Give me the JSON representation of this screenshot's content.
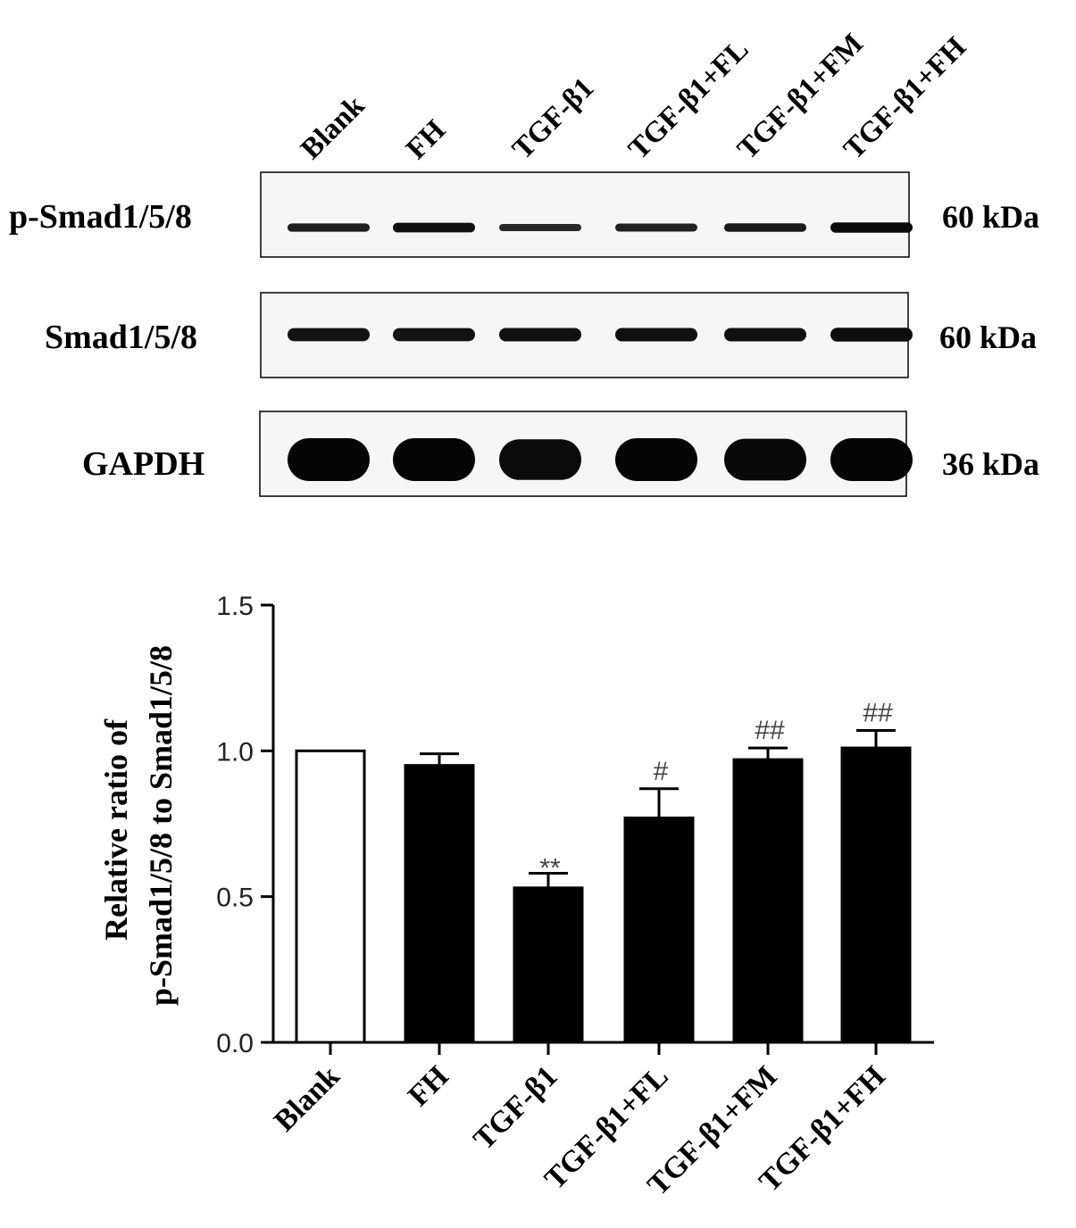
{
  "lanes": [
    "Blank",
    "FH",
    "TGF-β1",
    "TGF-β1+FL",
    "TGF-β1+FM",
    "TGF-β1+FH"
  ],
  "blots": [
    {
      "label": "p-Smad1/5/8",
      "kda": "60 kDa",
      "intensity": [
        0.55,
        0.8,
        0.35,
        0.5,
        0.6,
        0.9
      ]
    },
    {
      "label": "Smad1/5/8",
      "kda": "60 kDa",
      "intensity": [
        0.75,
        0.75,
        0.8,
        0.8,
        0.8,
        0.85
      ]
    },
    {
      "label": "GAPDH",
      "kda": "36 kDa",
      "intensity": [
        1,
        1,
        0.9,
        1,
        0.95,
        1
      ]
    }
  ],
  "chart_data": {
    "type": "bar",
    "categories": [
      "Blank",
      "FH",
      "TGF-β1",
      "TGF-β1+FL",
      "TGF-β1+FM",
      "TGF-β1+FH"
    ],
    "values": [
      1.0,
      0.95,
      0.53,
      0.77,
      0.97,
      1.01
    ],
    "errors": [
      0,
      0.04,
      0.05,
      0.1,
      0.04,
      0.06
    ],
    "bar_fill": [
      "#ffffff",
      "#000000",
      "#000000",
      "#000000",
      "#000000",
      "#000000"
    ],
    "annotations": [
      "",
      "",
      "**",
      "#",
      "##",
      "##"
    ],
    "ylabel_line1": "Relative ratio of",
    "ylabel_line2": "p-Smad1/5/8 to Smad1/5/8",
    "ylim": [
      0,
      1.5
    ],
    "yticks": [
      0.0,
      0.5,
      1.0,
      1.5
    ],
    "yticklabels": [
      "0.0",
      "0.5",
      "1.0",
      "1.5"
    ],
    "grid": false,
    "legend": "none"
  }
}
